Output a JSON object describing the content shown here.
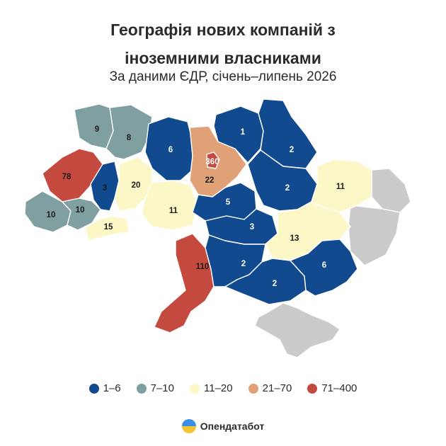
{
  "title_line1": "Географія нових компаній з",
  "title_line2": "іноземними власниками",
  "subtitle": "За даними ЄДР, січень–липень 2026",
  "legend": [
    {
      "label": "1–6",
      "color": "#124a8f"
    },
    {
      "label": "7–10",
      "color": "#7f9fa0"
    },
    {
      "label": "11–20",
      "color": "#fbf7c6"
    },
    {
      "label": "21–70",
      "color": "#e0a176"
    },
    {
      "label": "71–400",
      "color": "#c44a3f"
    }
  ],
  "no_data_color": "#cbcbcb",
  "region_values": {
    "volyn": "9",
    "rivne": "8",
    "zhytomyr": "6",
    "kyiv_oblast": "22",
    "kyiv_city": "360",
    "chernihiv": "1",
    "sumy": "2",
    "lviv": "78",
    "ternopil": "3",
    "khmelnytskyi": "20",
    "vinnytsia": "11",
    "cherkasy": "5",
    "poltava": "2",
    "kharkiv": "11",
    "zakarpattia": "10",
    "ivano_frankivsk": "10",
    "chernivtsi": "15",
    "kirovohrad": "3",
    "dnipropetrovsk": "13",
    "odesa": "110",
    "mykolaiv": "2",
    "kherson": "2",
    "zaporizhzhia": "6"
  },
  "brand": {
    "name": "Опендатабот",
    "icon": "opendatabot-logo-icon"
  }
}
